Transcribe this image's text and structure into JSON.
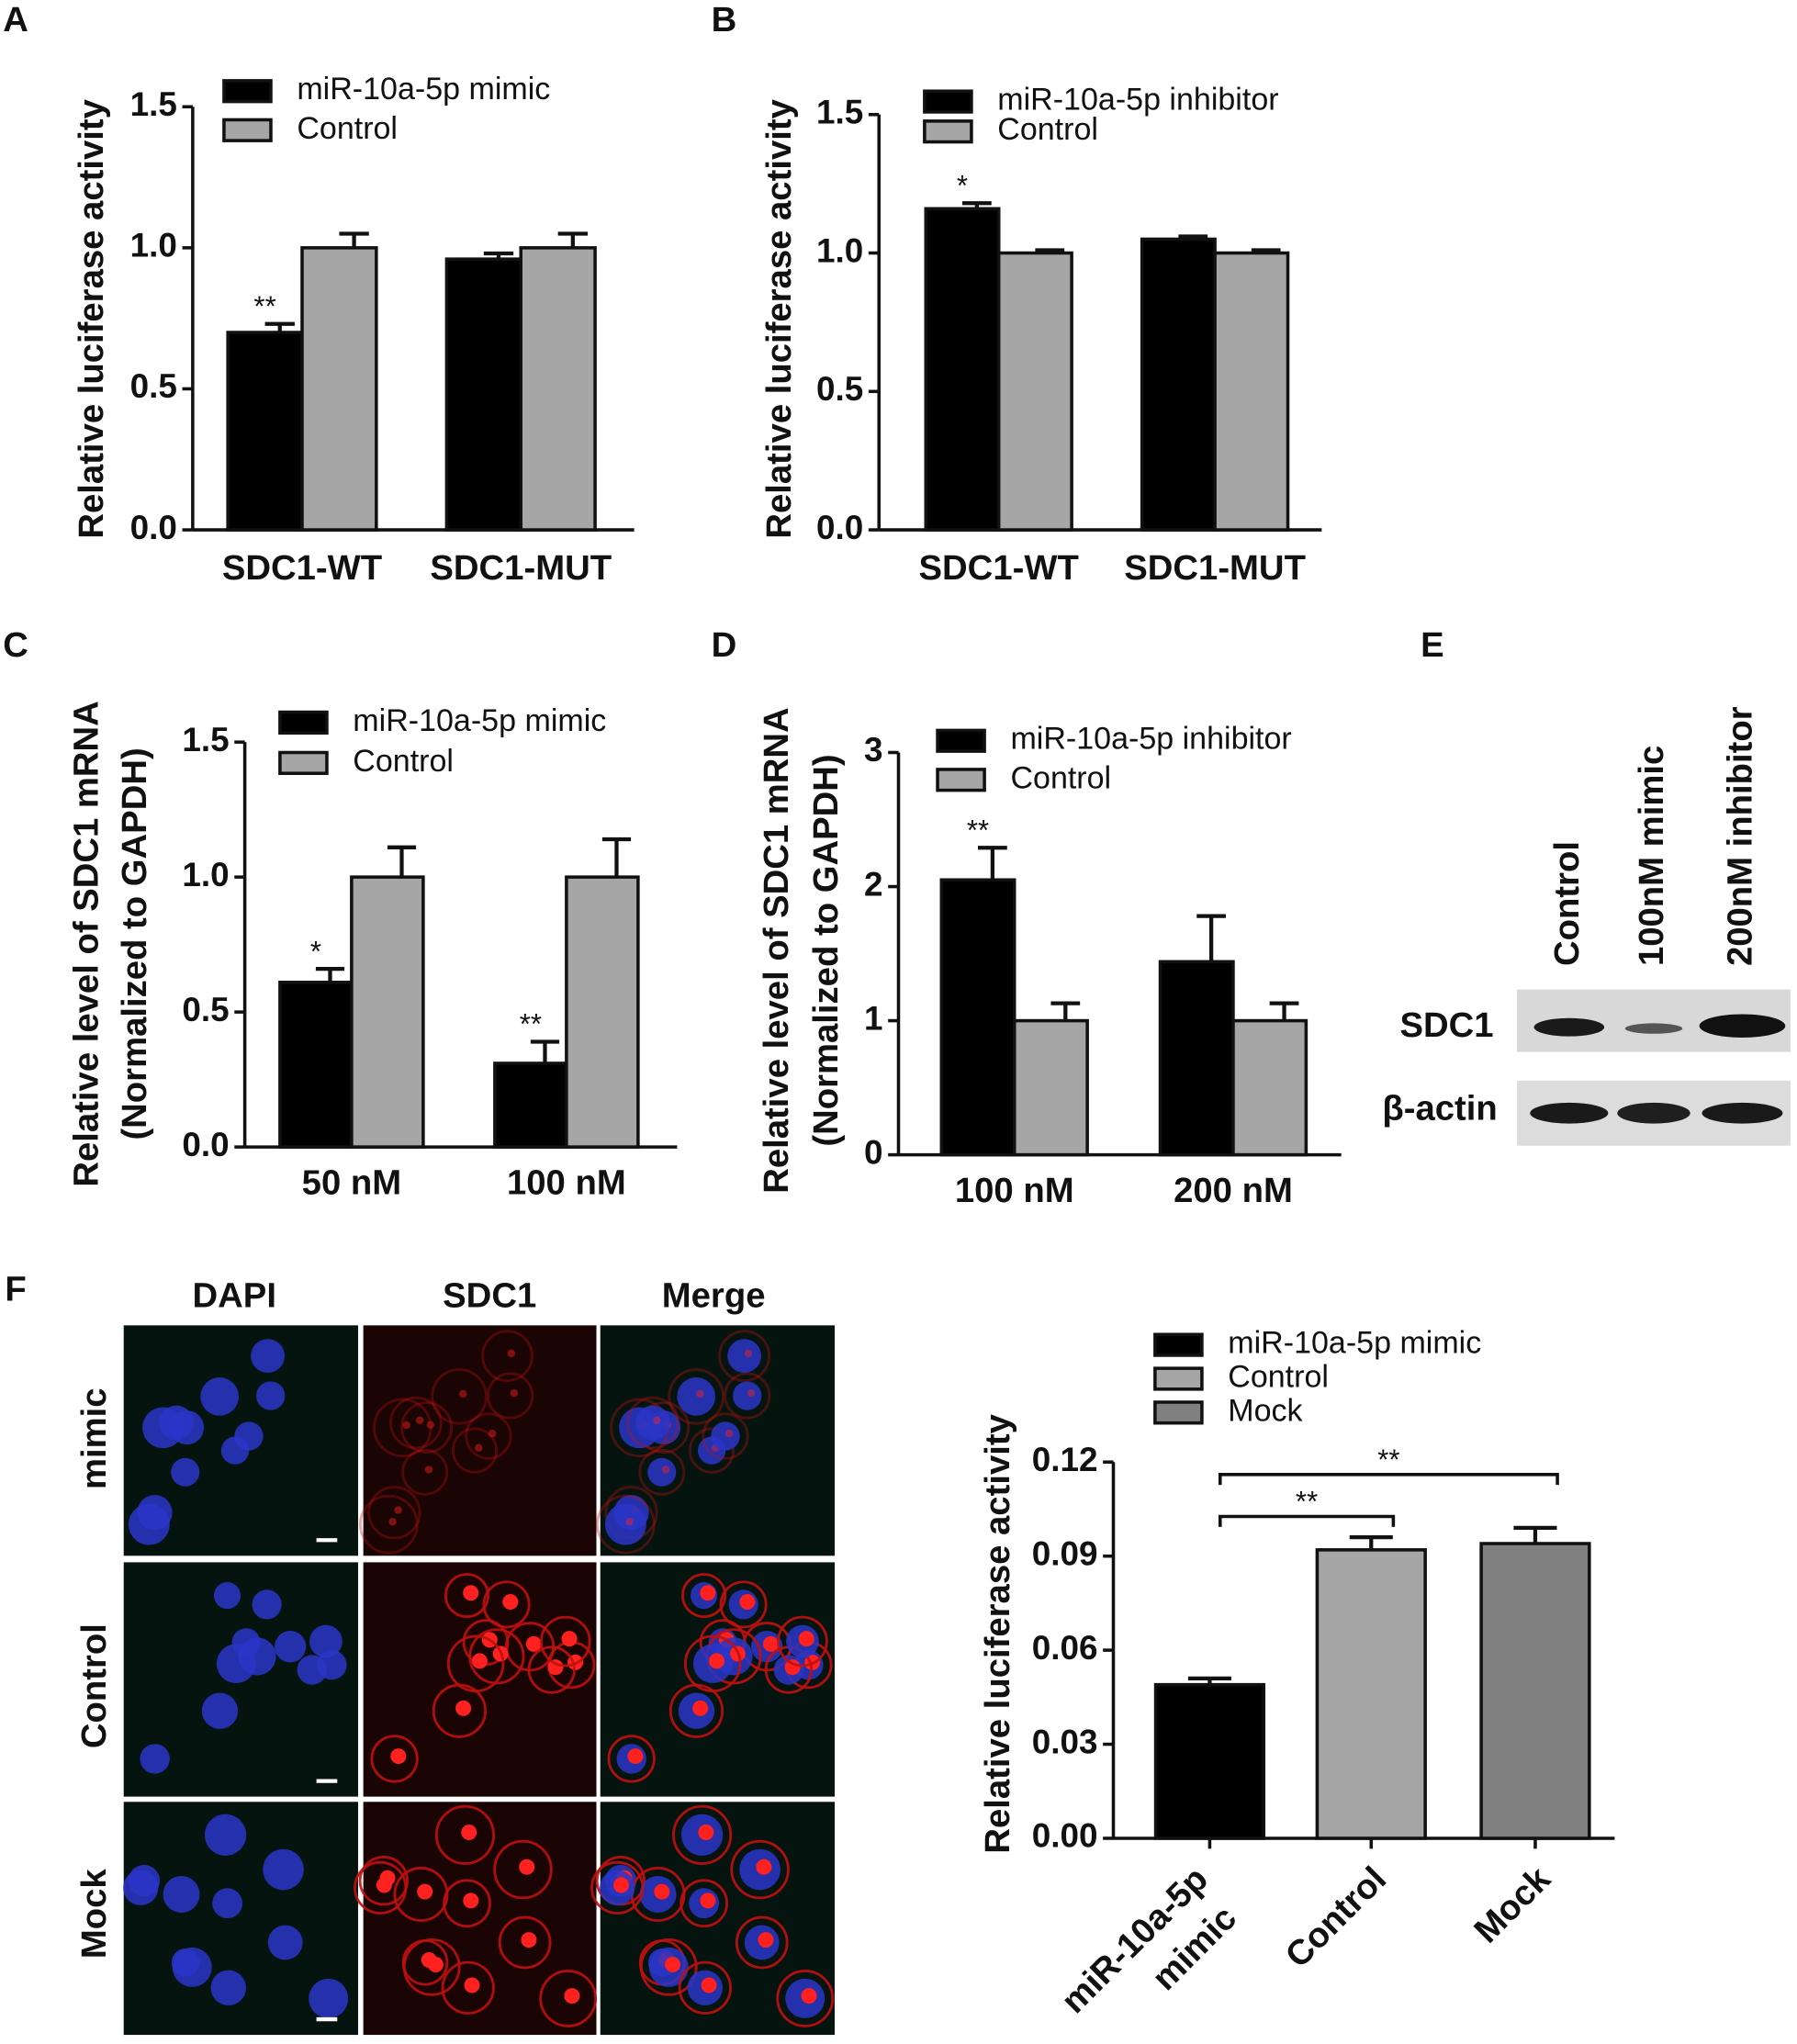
{
  "chart_data": [
    {
      "type": "bar",
      "panel_label": "A",
      "ylabel": [
        "Relative luciferase activity"
      ],
      "categories": [
        "SDC1-WT",
        "SDC1-MUT"
      ],
      "series": [
        {
          "name": "miR-10a-5p mimic",
          "color": "#000000",
          "values": [
            0.7,
            0.96
          ],
          "errors": [
            0.03,
            0.02
          ],
          "significance": [
            "**",
            null
          ]
        },
        {
          "name": "Control",
          "color": "#a6a6a6",
          "values": [
            1.0,
            1.0
          ],
          "errors": [
            0.05,
            0.05
          ],
          "significance": [
            null,
            null
          ]
        }
      ],
      "ylim": [
        0,
        1.5
      ],
      "yticks": [
        {
          "value": 0,
          "label": "0.0"
        },
        0.5,
        {
          "value": 1,
          "label": "1.0"
        },
        1.5
      ]
    },
    {
      "type": "bar",
      "panel_label": "B",
      "ylabel": [
        "Relative luciferase activity"
      ],
      "categories": [
        "SDC1-WT",
        "SDC1-MUT"
      ],
      "series": [
        {
          "name": "miR-10a-5p inhibitor",
          "color": "#000000",
          "values": [
            1.16,
            1.05
          ],
          "errors": [
            0.02,
            0.01
          ],
          "significance": [
            "*",
            null
          ]
        },
        {
          "name": "Control",
          "color": "#a6a6a6",
          "values": [
            1.0,
            1.0
          ],
          "errors": [
            0.01,
            0.01
          ],
          "significance": [
            null,
            null
          ]
        }
      ],
      "ylim": [
        0,
        1.5
      ],
      "yticks": [
        {
          "value": 0,
          "label": "0.0"
        },
        0.5,
        {
          "value": 1,
          "label": "1.0"
        },
        1.5
      ]
    },
    {
      "type": "bar",
      "panel_label": "C",
      "ylabel": [
        "Relative level of SDC1 mRNA",
        "(Normalized to GAPDH)"
      ],
      "categories": [
        "50 nM",
        "100 nM"
      ],
      "series": [
        {
          "name": "miR-10a-5p mimic",
          "color": "#000000",
          "values": [
            0.61,
            0.31
          ],
          "errors": [
            0.05,
            0.08
          ],
          "significance": [
            "*",
            "**"
          ]
        },
        {
          "name": "Control",
          "color": "#a6a6a6",
          "values": [
            1.0,
            1.0
          ],
          "errors": [
            0.11,
            0.14
          ],
          "significance": [
            null,
            null
          ]
        }
      ],
      "ylim": [
        0,
        1.5
      ],
      "yticks": [
        {
          "value": 0,
          "label": "0.0"
        },
        0.5,
        {
          "value": 1,
          "label": "1.0"
        },
        1.5
      ]
    },
    {
      "type": "bar",
      "panel_label": "D",
      "ylabel": [
        "Relative level of SDC1 mRNA",
        "(Normalized to GAPDH)"
      ],
      "categories": [
        "100 nM",
        "200 nM"
      ],
      "series": [
        {
          "name": "miR-10a-5p inhibitor",
          "color": "#000000",
          "values": [
            2.05,
            1.44
          ],
          "errors": [
            0.24,
            0.34
          ],
          "significance": [
            "**",
            null
          ]
        },
        {
          "name": "Control",
          "color": "#a6a6a6",
          "values": [
            1.0,
            1.0
          ],
          "errors": [
            0.13,
            0.13
          ],
          "significance": [
            null,
            null
          ]
        }
      ],
      "ylim": [
        0,
        3
      ],
      "yticks": [
        0,
        1,
        2,
        3
      ]
    },
    {
      "type": "bar",
      "ylabel": [
        "Relative luciferase activity"
      ],
      "categories": [
        [
          "miR-10a-5p",
          "mimic"
        ],
        "Control",
        "Mock"
      ],
      "legend": [
        "miR-10a-5p mimic",
        "Control",
        "Mock"
      ],
      "colors": [
        "#000000",
        "#a6a6a6",
        "#808080"
      ],
      "values": [
        0.049,
        0.092,
        0.094
      ],
      "errors": [
        0.002,
        0.004,
        0.005
      ],
      "significance": [
        null,
        "**",
        "**"
      ],
      "ylim": [
        0,
        0.12
      ],
      "yticks": [
        {
          "value": 0,
          "label": "0.00"
        },
        {
          "value": 0.03,
          "label": "0.03"
        },
        {
          "value": 0.06,
          "label": "0.06"
        },
        {
          "value": 0.09,
          "label": "0.09"
        },
        {
          "value": 0.12,
          "label": "0.12"
        }
      ]
    }
  ],
  "blot": {
    "panel_label": "E",
    "lanes": [
      "Control",
      "100nM mimic",
      "200nM inhibitor"
    ],
    "rows": [
      "SDC1",
      "β-actin"
    ]
  },
  "micrograph": {
    "panel_label": "F",
    "columns": [
      "DAPI",
      "SDC1",
      "Merge"
    ],
    "rows": [
      "mimic",
      "Control",
      "Mock"
    ]
  }
}
